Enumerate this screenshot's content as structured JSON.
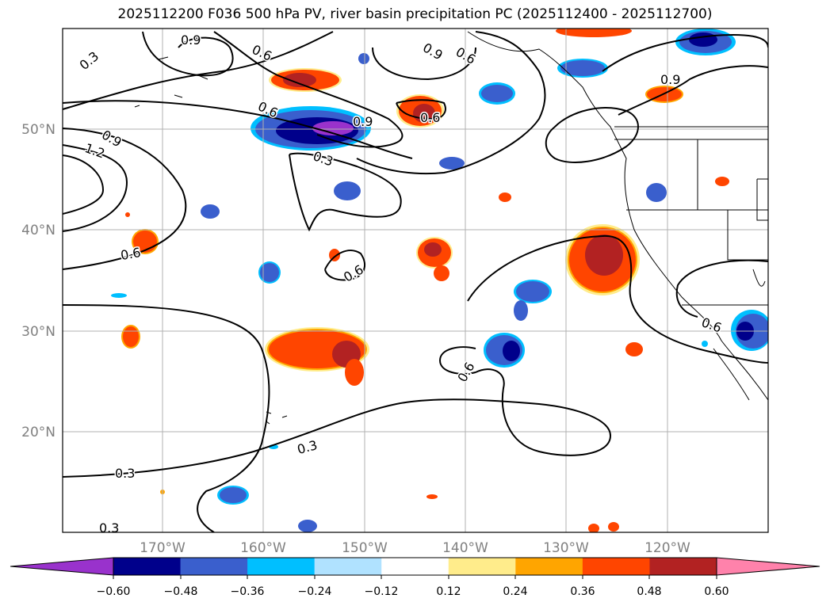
{
  "title": "2025112200 F036 500 hPa PV, river basin precipitation PC (2025112400 - 2025112700)",
  "map": {
    "lat_labels": [
      "50°N",
      "40°N",
      "30°N",
      "20°N"
    ],
    "lon_labels": [
      "170°W",
      "160°W",
      "150°W",
      "140°W",
      "130°W",
      "120°W"
    ],
    "label_color": "#808080",
    "grid": true,
    "contour_variable": "500 hPa PV",
    "contour_labels": [
      "0.9",
      "0.3",
      "0.6",
      "0.9",
      "0.6",
      "0.9",
      "0.6",
      "0.9",
      "1.2",
      "0.9",
      "0.3",
      "0.6",
      "0.6",
      "0.6",
      "0.6",
      "0.3",
      "0.3",
      "0.3",
      "0.6"
    ]
  },
  "colorbar": {
    "ticks": [
      "−0.60",
      "−0.48",
      "−0.36",
      "−0.24",
      "−0.12",
      "0.12",
      "0.24",
      "0.36",
      "0.48",
      "0.60"
    ],
    "colors": [
      "#9932cc",
      "#00008b",
      "#3a5fcd",
      "#00bfff",
      "#b0e2ff",
      "#ffffff",
      "#ffec8b",
      "#ffa500",
      "#ff4500",
      "#b22222",
      "#ff82ab"
    ]
  }
}
